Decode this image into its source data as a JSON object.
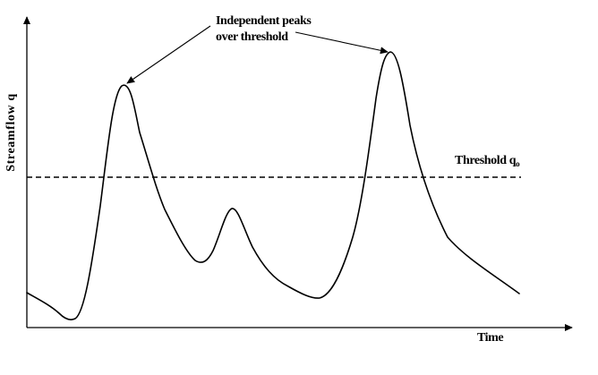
{
  "annotations": {
    "peaks_line1": "Independent peaks",
    "peaks_line2": "over threshold",
    "threshold_text": "Threshold q",
    "threshold_subscript": "o"
  },
  "axes": {
    "x_label": "Time",
    "y_label": "Streamflow q"
  },
  "colors": {
    "ink": "#000000",
    "background": "#ffffff"
  }
}
